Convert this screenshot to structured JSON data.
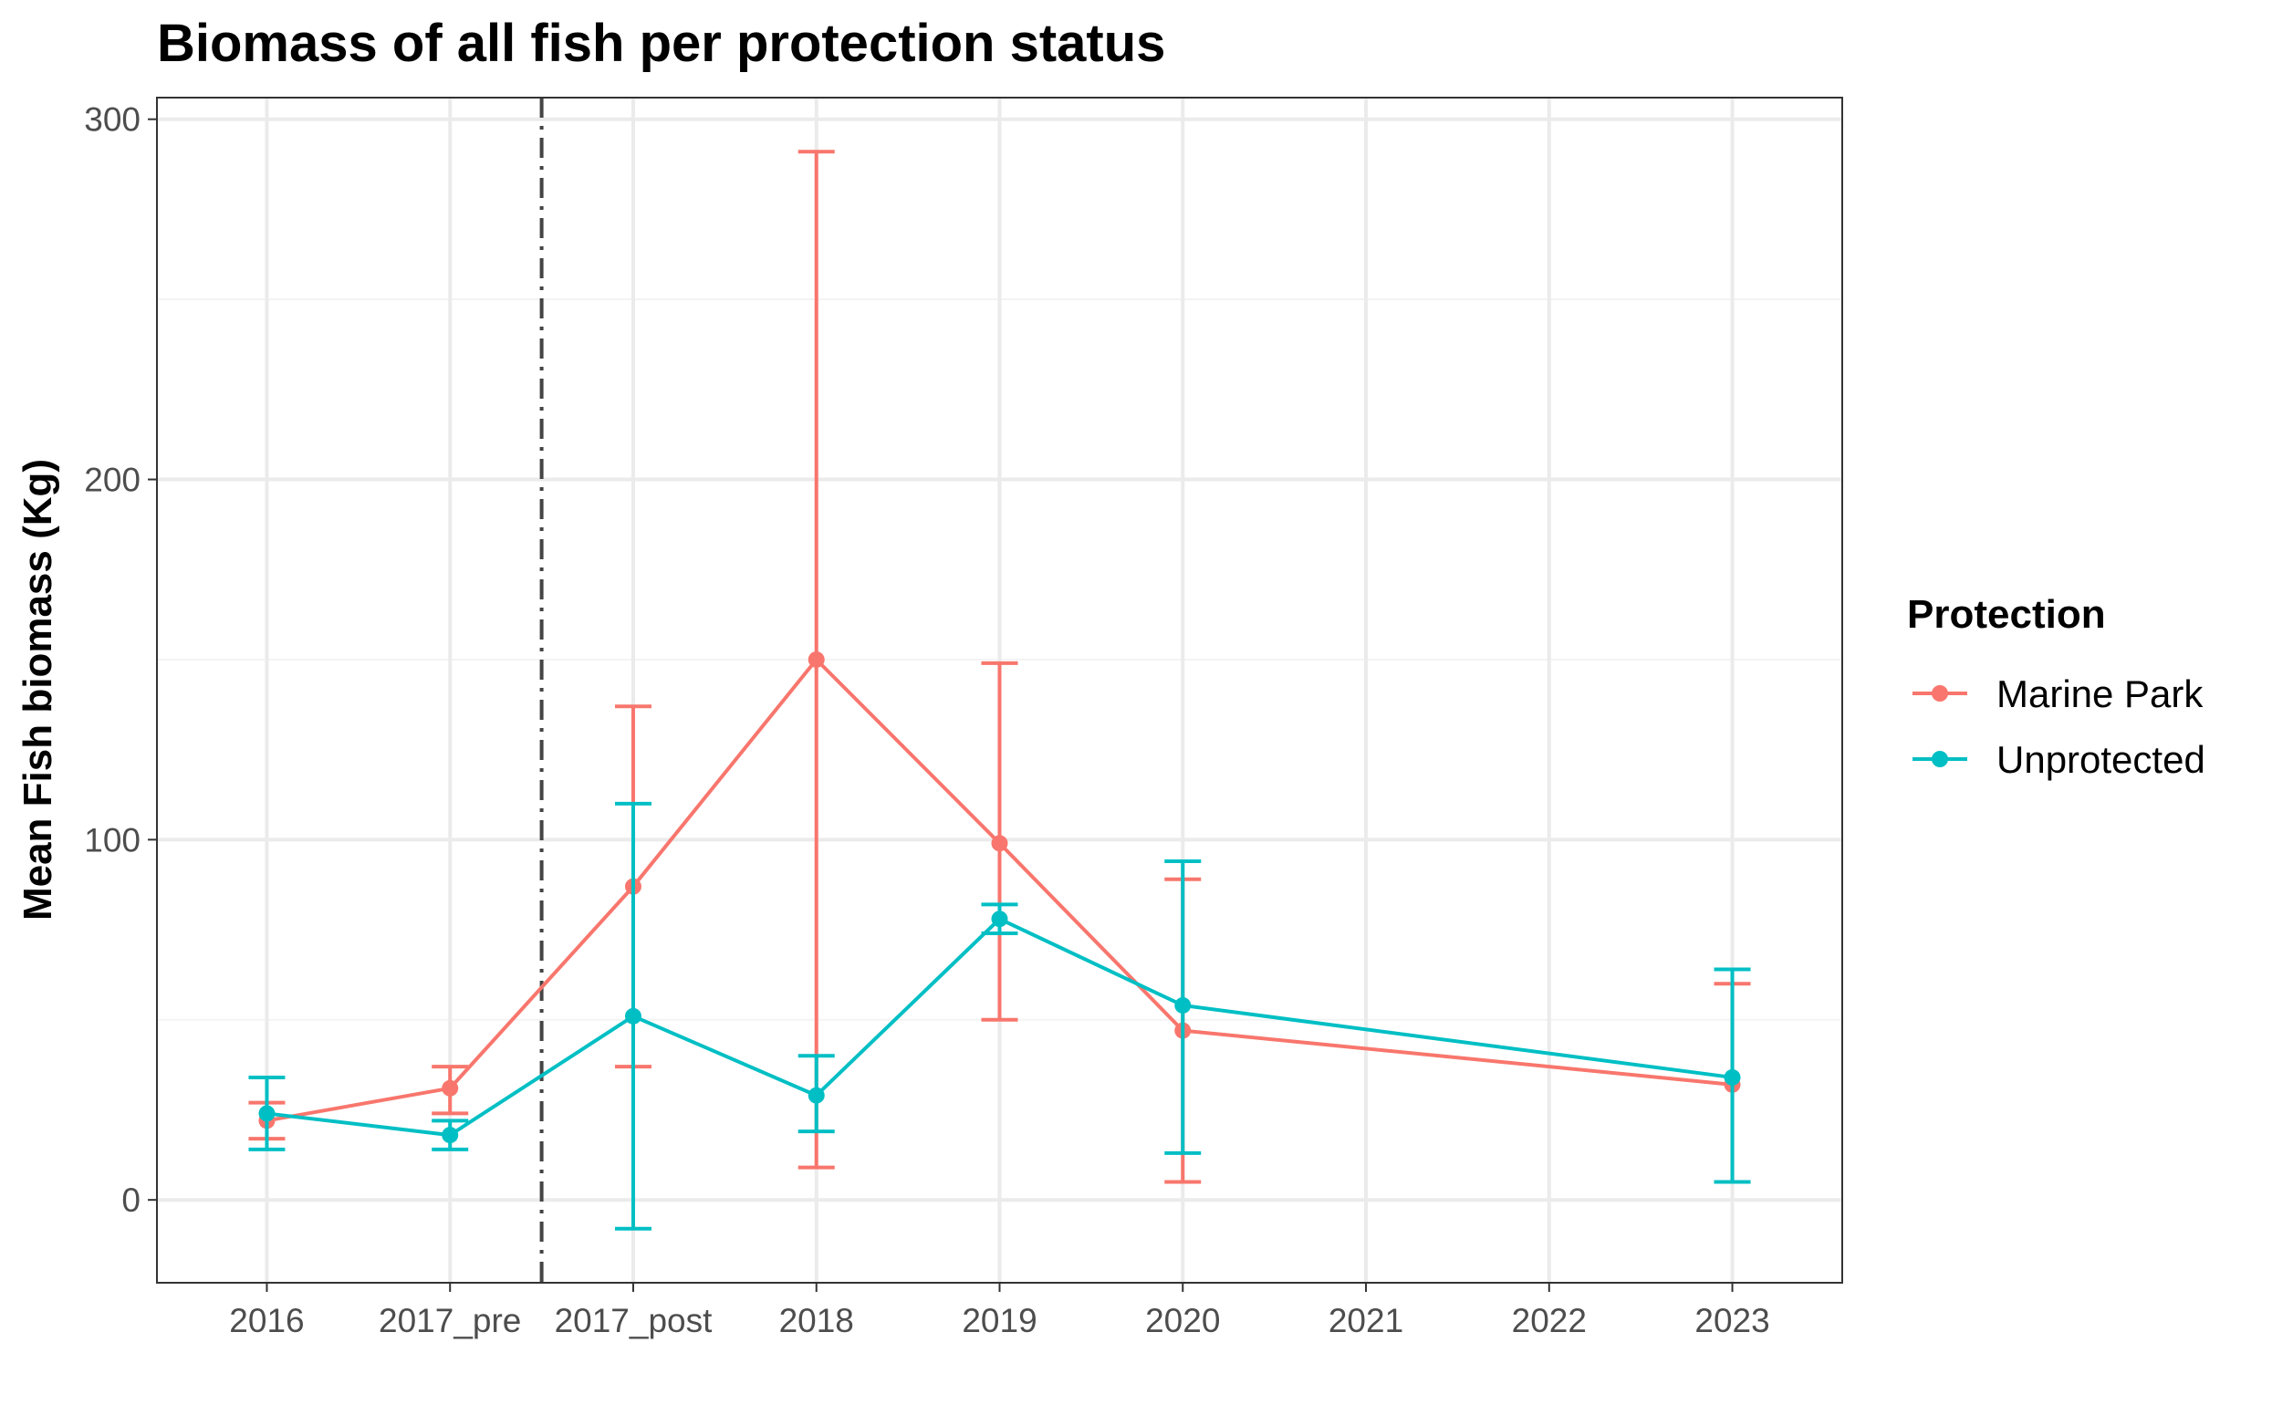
{
  "chart_data": {
    "type": "line",
    "title": "Biomass of all fish per protection status",
    "xlabel": "",
    "ylabel": "Mean Fish biomass (Kg)",
    "categories": [
      "2016",
      "2017_pre",
      "2017_post",
      "2018",
      "2019",
      "2020",
      "2021",
      "2022",
      "2023"
    ],
    "ylim": [
      -23,
      306
    ],
    "yticks": [
      0,
      100,
      200,
      300
    ],
    "grid": true,
    "event_line": {
      "between": [
        "2017_pre",
        "2017_post"
      ],
      "style": "dashed-dotted",
      "color": "#444444"
    },
    "legend": {
      "title": "Protection",
      "placement": "right"
    },
    "series": [
      {
        "name": "Marine Park",
        "color": "#F8766D",
        "points": [
          {
            "x": "2016",
            "y": 22,
            "ymin": 17,
            "ymax": 27
          },
          {
            "x": "2017_pre",
            "y": 31,
            "ymin": 24,
            "ymax": 37
          },
          {
            "x": "2017_post",
            "y": 87,
            "ymin": 37,
            "ymax": 137
          },
          {
            "x": "2018",
            "y": 150,
            "ymin": 9,
            "ymax": 291
          },
          {
            "x": "2019",
            "y": 99,
            "ymin": 50,
            "ymax": 149
          },
          {
            "x": "2020",
            "y": 47,
            "ymin": 5,
            "ymax": 89
          },
          {
            "x": "2023",
            "y": 32,
            "ymin": 5,
            "ymax": 60
          }
        ]
      },
      {
        "name": "Unprotected",
        "color": "#00BFC4",
        "points": [
          {
            "x": "2016",
            "y": 24,
            "ymin": 14,
            "ymax": 34
          },
          {
            "x": "2017_pre",
            "y": 18,
            "ymin": 14,
            "ymax": 22
          },
          {
            "x": "2017_post",
            "y": 51,
            "ymin": -8,
            "ymax": 110
          },
          {
            "x": "2018",
            "y": 29,
            "ymin": 19,
            "ymax": 40
          },
          {
            "x": "2019",
            "y": 78,
            "ymin": 74,
            "ymax": 82
          },
          {
            "x": "2020",
            "y": 54,
            "ymin": 13,
            "ymax": 94
          },
          {
            "x": "2023",
            "y": 34,
            "ymin": 5,
            "ymax": 64
          }
        ]
      }
    ]
  }
}
